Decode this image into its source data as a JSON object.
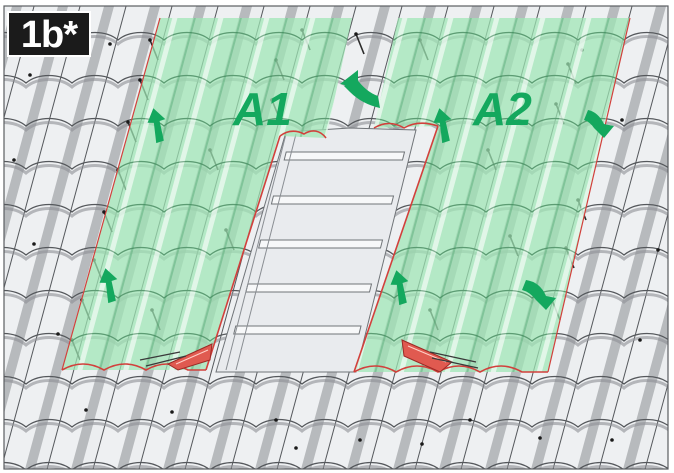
{
  "badge": "1b*",
  "areas": [
    {
      "id": "a1",
      "label": "A1"
    },
    {
      "id": "a2",
      "label": "A2"
    }
  ],
  "colors": {
    "tile_fill": "#c9cbce",
    "tile_ridge": "#eef0f2",
    "tile_shadow": "#8d9094",
    "tile_outline": "#55585c",
    "underlay_fill": "#9ee6b4",
    "underlay_outline": "#d2403c",
    "arrow": "#14a85e",
    "badge_bg": "#1b1b1b",
    "badge_text": "#ffffff",
    "window_fill": "#e9ebee",
    "rung_fill": "#f7f8f9"
  },
  "icons": [
    "fold-arrow-icon",
    "curved-arrow-icon",
    "nail-icon",
    "red-tab-icon"
  ]
}
